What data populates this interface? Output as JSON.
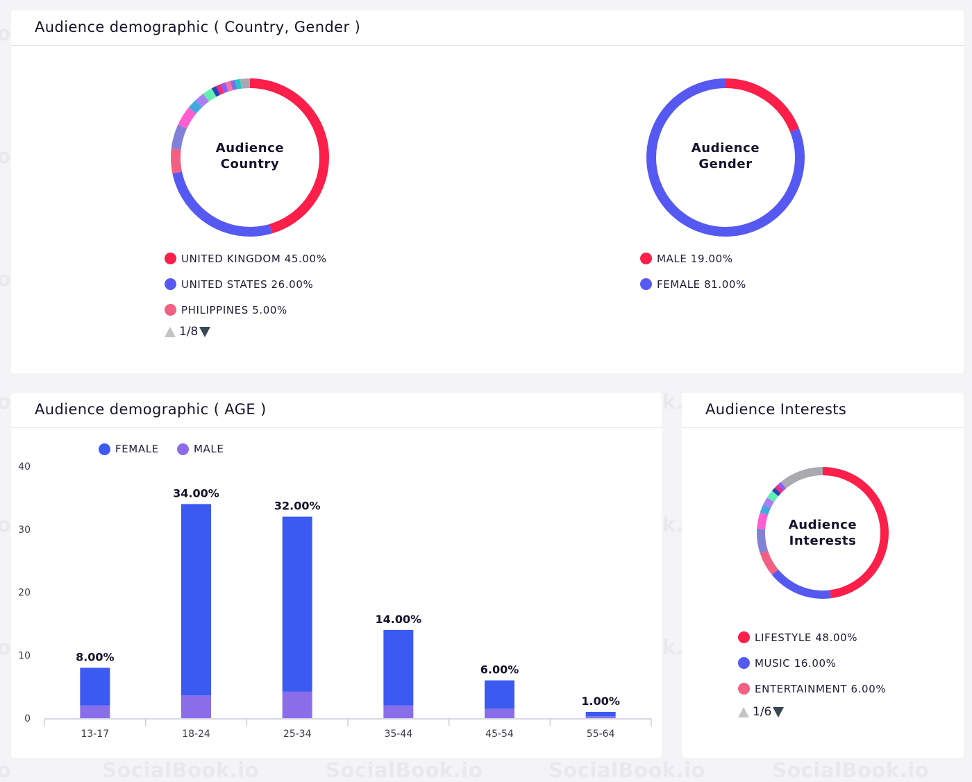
{
  "watermark_text": "SocialBook.io",
  "demographic_card": {
    "title": "Audience demographic ( Country, Gender )",
    "country": {
      "center_line1": "Audience",
      "center_line2": "Country",
      "segments": [
        {
          "value": 45,
          "color": "#fb1f49"
        },
        {
          "value": 26,
          "color": "#5659f1"
        },
        {
          "value": 5,
          "color": "#f26084"
        },
        {
          "value": 5,
          "color": "#8281d8"
        },
        {
          "value": 4,
          "color": "#ff5ed1"
        },
        {
          "value": 2,
          "color": "#43a8e2"
        },
        {
          "value": 2,
          "color": "#a97ff2"
        },
        {
          "value": 2,
          "color": "#5ff0b1"
        },
        {
          "value": 1,
          "color": "#2c3fb6"
        },
        {
          "value": 1,
          "color": "#f02b77"
        },
        {
          "value": 1,
          "color": "#8b5cf6"
        },
        {
          "value": 1,
          "color": "#ff6fa1"
        },
        {
          "value": 1,
          "color": "#7b6fe8"
        },
        {
          "value": 1,
          "color": "#1ec8c8"
        },
        {
          "value": 2,
          "color": "#a9a9b1"
        }
      ],
      "legend": [
        {
          "label": "UNITED KINGDOM 45.00%",
          "color": "#fb1f49"
        },
        {
          "label": "UNITED STATES 26.00%",
          "color": "#5659f1"
        },
        {
          "label": "PHILIPPINES 5.00%",
          "color": "#f26084"
        }
      ],
      "pager": "1/8"
    },
    "gender": {
      "center_line1": "Audience",
      "center_line2": "Gender",
      "segments": [
        {
          "value": 19,
          "color": "#fb1f49"
        },
        {
          "value": 81,
          "color": "#5659f1"
        }
      ],
      "legend": [
        {
          "label": "MALE 19.00%",
          "color": "#fb1f49"
        },
        {
          "label": "FEMALE 81.00%",
          "color": "#5659f1"
        }
      ]
    }
  },
  "age_card": {
    "title": "Audience demographic ( AGE )",
    "legend": [
      {
        "label": "FEMALE",
        "color": "#3b5af2"
      },
      {
        "label": "MALE",
        "color": "#8a6ee9"
      }
    ]
  },
  "chart_data": {
    "type": "bar",
    "stacked": true,
    "categories": [
      "13-17",
      "18-24",
      "25-34",
      "35-44",
      "45-54",
      "55-64"
    ],
    "series": [
      {
        "name": "MALE",
        "color": "#8a6ee9",
        "values": [
          2.0,
          3.6,
          4.2,
          2.0,
          1.5,
          0.3
        ]
      },
      {
        "name": "FEMALE",
        "color": "#3b5af2",
        "values": [
          6.0,
          30.4,
          27.8,
          12.0,
          4.5,
          0.7
        ]
      }
    ],
    "totals": [
      8,
      34,
      32,
      14,
      6,
      1
    ],
    "data_labels": [
      "8.00%",
      "34.00%",
      "32.00%",
      "14.00%",
      "6.00%",
      "1.00%"
    ],
    "y_ticks": [
      0,
      10,
      20,
      30,
      40
    ],
    "ylim": [
      0,
      40
    ],
    "grid": false,
    "legend_position": "top-left"
  },
  "interests_card": {
    "title": "Audience Interests",
    "center_line1": "Audience",
    "center_line2": "Interests",
    "segments": [
      {
        "value": 48,
        "color": "#fb1f49"
      },
      {
        "value": 16,
        "color": "#5659f1"
      },
      {
        "value": 6,
        "color": "#f26084"
      },
      {
        "value": 6,
        "color": "#8281d8"
      },
      {
        "value": 4,
        "color": "#ff5ed1"
      },
      {
        "value": 2,
        "color": "#43a8e2"
      },
      {
        "value": 2,
        "color": "#a97ff2"
      },
      {
        "value": 2,
        "color": "#5ff0b1"
      },
      {
        "value": 1,
        "color": "#2c3fb6"
      },
      {
        "value": 1,
        "color": "#f02b77"
      },
      {
        "value": 1,
        "color": "#8b5cf6"
      },
      {
        "value": 11,
        "color": "#a9a9b1"
      }
    ],
    "legend": [
      {
        "label": "LIFESTYLE 48.00%",
        "color": "#fb1f49"
      },
      {
        "label": "MUSIC 16.00%",
        "color": "#5659f1"
      },
      {
        "label": "ENTERTAINMENT 6.00%",
        "color": "#f26084"
      }
    ],
    "pager": "1/6"
  }
}
